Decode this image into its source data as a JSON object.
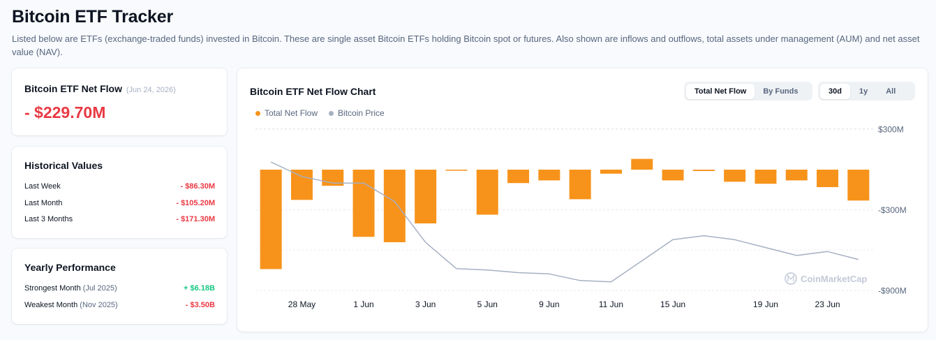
{
  "page": {
    "title": "Bitcoin ETF Tracker",
    "description": "Listed below are ETFs (exchange-traded funds) invested in Bitcoin. These are single asset Bitcoin ETFs holding Bitcoin spot or futures. Also shown are inflows and outflows, total assets under management (AUM) and net asset value (NAV)."
  },
  "net_flow": {
    "title": "Bitcoin ETF Net Flow",
    "date": "(Jun 24, 2026)",
    "value": "- $229.70M"
  },
  "historical": {
    "title": "Historical Values",
    "rows": [
      {
        "label": "Last Week",
        "value": "- $86.30M"
      },
      {
        "label": "Last Month",
        "value": "- $105.20M"
      },
      {
        "label": "Last 3 Months",
        "value": "- $171.30M"
      }
    ]
  },
  "yearly": {
    "title": "Yearly Performance",
    "rows": [
      {
        "label": "Strongest Month",
        "period": "(Jul 2025)",
        "value": "+ $6.18B"
      },
      {
        "label": "Weakest Month",
        "period": "(Nov 2025)",
        "value": "- $3.50B"
      }
    ]
  },
  "chart_panel": {
    "title": "Bitcoin ETF Net Flow Chart",
    "flow_tabs": [
      {
        "label": "Total Net Flow",
        "active": true
      },
      {
        "label": "By Funds",
        "active": false
      }
    ],
    "range_tabs": [
      {
        "label": "30d",
        "active": true
      },
      {
        "label": "1y",
        "active": false
      },
      {
        "label": "All",
        "active": false
      }
    ],
    "watermark": "CoinMarketCap"
  },
  "chart_data": {
    "type": "bar",
    "legend": [
      "Total Net Flow",
      "Bitcoin Price"
    ],
    "legend_position": "top-left",
    "grid": true,
    "y_ticks": [
      "$300M",
      "-$300M",
      "-$900M"
    ],
    "y_tick_values": [
      300,
      -300,
      -900
    ],
    "ylim": [
      -900,
      300
    ],
    "x_tick_labels": [
      {
        "label": "28 May",
        "index": 1
      },
      {
        "label": "1 Jun",
        "index": 3
      },
      {
        "label": "3 Jun",
        "index": 5
      },
      {
        "label": "5 Jun",
        "index": 7
      },
      {
        "label": "9 Jun",
        "index": 9
      },
      {
        "label": "11 Jun",
        "index": 11
      },
      {
        "label": "15 Jun",
        "index": 13
      },
      {
        "label": "19 Jun",
        "index": 16
      },
      {
        "label": "23 Jun",
        "index": 18
      }
    ],
    "series": [
      {
        "name": "Total Net Flow",
        "color": "#f7931a",
        "values": [
          -740,
          -225,
          -120,
          -500,
          -540,
          -400,
          -5,
          -335,
          -100,
          -80,
          -220,
          -30,
          80,
          -80,
          -10,
          -90,
          -105,
          -80,
          -130,
          -230
        ]
      },
      {
        "name": "Bitcoin Price",
        "color": "#a6b0c3",
        "relative_level": [
          0.88,
          0.77,
          0.72,
          0.72,
          0.58,
          0.27,
          0.07,
          0.06,
          0.04,
          0.03,
          -0.02,
          -0.03,
          0.13,
          0.29,
          0.32,
          0.29,
          0.23,
          0.17,
          0.2,
          0.14
        ]
      }
    ]
  }
}
